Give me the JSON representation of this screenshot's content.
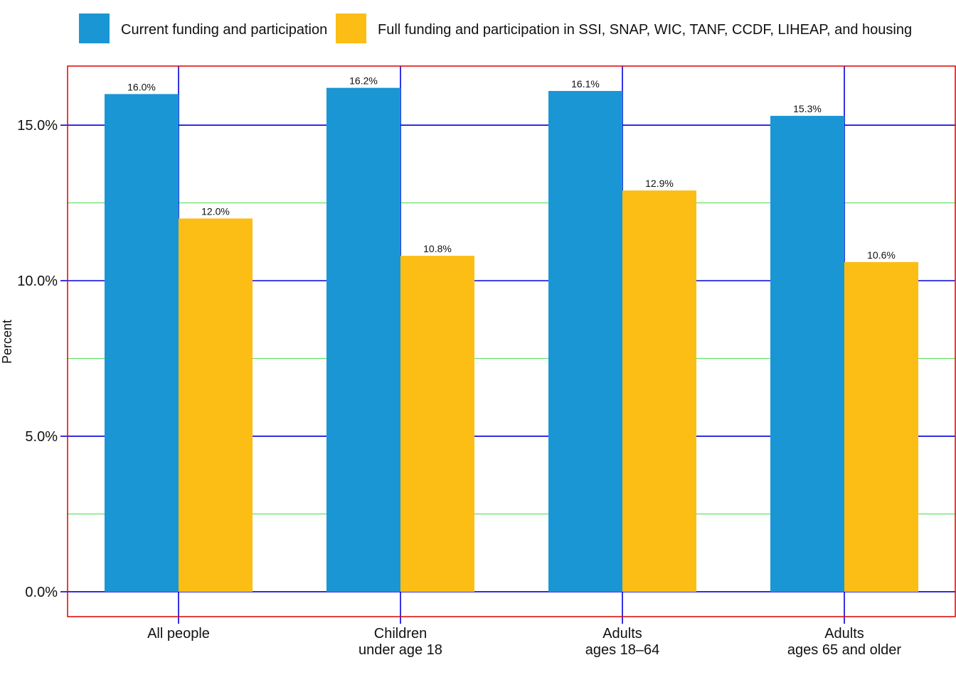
{
  "chart_data": {
    "type": "bar",
    "categories": [
      [
        "All people"
      ],
      [
        "Children",
        "under age 18"
      ],
      [
        "Adults",
        "ages 18–64"
      ],
      [
        "Adults",
        "ages 65 and older"
      ]
    ],
    "series": [
      {
        "name": "Current funding and participation",
        "color": "#1a96d4",
        "values": [
          16.0,
          16.2,
          16.1,
          15.3
        ],
        "labels": [
          "16.0%",
          "16.2%",
          "16.1%",
          "15.3%"
        ]
      },
      {
        "name": "Full funding and participation in SSI, SNAP, WIC, TANF, CCDF, LIHEAP, and housing",
        "color": "#fcbd15",
        "values": [
          12.0,
          10.8,
          12.9,
          10.6
        ],
        "labels": [
          "12.0%",
          "10.8%",
          "12.9%",
          "10.6%"
        ]
      }
    ],
    "ylabel": "Percent",
    "xlabel": "",
    "ylim": [
      -0.8,
      16.9
    ],
    "yticks": [
      0,
      5,
      10,
      15
    ],
    "ytick_labels": [
      "0.0%",
      "5.0%",
      "10.0%",
      "15.0%"
    ],
    "minor_gridlines": [
      2.5,
      7.5,
      12.5
    ],
    "legend_position": "top",
    "grid": true,
    "colors": {
      "major_grid": "#0000dd",
      "minor_grid": "#44dd44",
      "panel_border": "#dd0000"
    }
  }
}
